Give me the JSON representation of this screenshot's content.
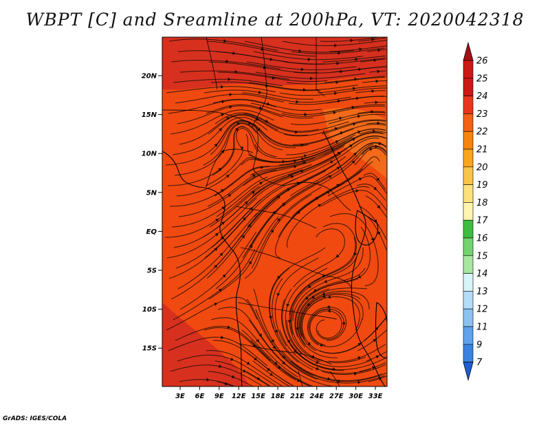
{
  "title": "WBPT [C] and Sreamline at 200hPa, VT: 2020042318",
  "credit": "GrADS: IGES/COLA",
  "map": {
    "lon_ticks": [
      "3E",
      "6E",
      "9E",
      "12E",
      "15E",
      "18E",
      "21E",
      "24E",
      "27E",
      "30E",
      "33E"
    ],
    "lat_ticks": [
      "20N",
      "15N",
      "10N",
      "5N",
      "EQ",
      "5S",
      "10S",
      "15S"
    ],
    "field_color": "#f04a10",
    "dark_color": "#d7301f",
    "light_color": "#f36a1a"
  },
  "colorbar": {
    "labels": [
      "26",
      "25",
      "24",
      "23",
      "22",
      "21",
      "20",
      "19",
      "18",
      "17",
      "16",
      "15",
      "14",
      "13",
      "12",
      "11",
      "9",
      "7"
    ],
    "colors": [
      "#a50f15",
      "#cb1a14",
      "#e8361c",
      "#f26115",
      "#f5850f",
      "#f8a41e",
      "#fac44a",
      "#fde27d",
      "#fff5b0",
      "#3fbd3f",
      "#73d46f",
      "#a6e6a0",
      "#d7f5f7",
      "#b5dcf7",
      "#8cc2f2",
      "#5ea3eb",
      "#3a82e0",
      "#1e5fd4"
    ]
  }
}
